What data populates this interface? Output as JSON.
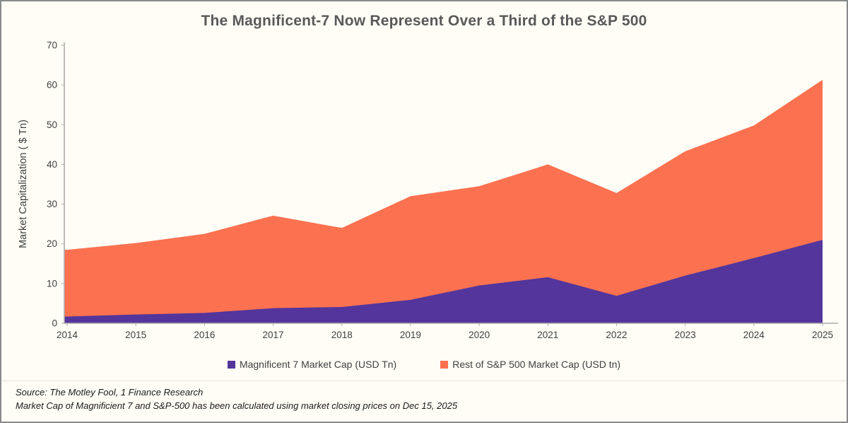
{
  "window": {
    "background": "#FFFDF6",
    "border_color": "#8A8A8A",
    "axis_color": "#ACACAC",
    "tick_label_color": "#3F3F3F",
    "title_color": "#595959"
  },
  "chart_data": {
    "type": "area",
    "stacked": true,
    "title": "The Magnificent-7 Now Represent Over a Third of the S&P 500",
    "xlabel": "",
    "ylabel": "Market Capitalization ( $ Tn)",
    "ylim": [
      0,
      70
    ],
    "y_ticks": [
      0,
      10,
      20,
      30,
      40,
      50,
      60,
      70
    ],
    "grid": false,
    "legend_position": "bottom",
    "categories": [
      "2014",
      "2015",
      "2016",
      "2017",
      "2018",
      "2019",
      "2020",
      "2021",
      "2022",
      "2023",
      "2024",
      "2025"
    ],
    "series": [
      {
        "name": "Magnificent 7 Market Cap (USD Tn)",
        "color": "#53359C",
        "values": [
          1.7,
          2.2,
          2.6,
          3.8,
          4.1,
          5.9,
          9.5,
          11.6,
          6.9,
          12.0,
          16.4,
          21.0
        ]
      },
      {
        "name": "Rest of S&P 500 Market Cap (USD tn)",
        "color": "#FC7150",
        "values": [
          16.8,
          18.0,
          19.9,
          23.3,
          19.9,
          26.1,
          25.0,
          28.4,
          25.9,
          31.3,
          33.4,
          40.3
        ]
      }
    ]
  },
  "footer": {
    "source_line1": "Source: The Motley Fool, 1 Finance Research",
    "source_line2": "Market Cap of Magnificient 7 and S&P-500 has been calculated using market closing prices on Dec 15, 2025"
  }
}
